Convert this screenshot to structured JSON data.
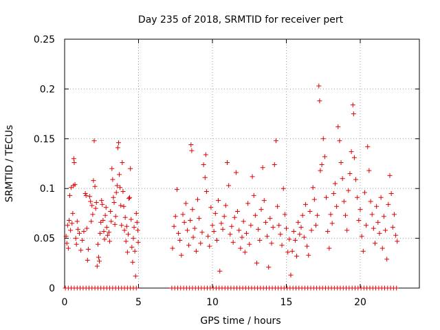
{
  "chart_data": {
    "type": "scatter",
    "title": "Day 235 of 2018, SRMTID for receiver pert",
    "xlabel": "GPS time / hours",
    "ylabel": "SRMTID / TECUs",
    "xlim": [
      0,
      24
    ],
    "ylim": [
      0,
      0.25
    ],
    "grid": true,
    "xticks": [
      0,
      5,
      10,
      15,
      20
    ],
    "xtick_labels": [
      "0",
      "5",
      "10",
      "15",
      "20"
    ],
    "yticks": [
      0,
      0.05,
      0.1,
      0.15,
      0.2,
      0.25
    ],
    "ytick_labels": [
      "0",
      "0.05",
      "0.1",
      "0.15",
      "0.2",
      "0.25"
    ],
    "marker": "+",
    "series": [
      {
        "name": "SRMTID",
        "color": "#e00000",
        "points": [
          [
            0.1,
            0.052
          ],
          [
            0.15,
            0.045
          ],
          [
            0.2,
            0.063
          ],
          [
            0.25,
            0.04
          ],
          [
            0.3,
            0.068
          ],
          [
            0.35,
            0.093
          ],
          [
            0.4,
            0.058
          ],
          [
            0.45,
            0.101
          ],
          [
            0.5,
            0.065
          ],
          [
            0.55,
            0.075
          ],
          [
            0.6,
            0.103
          ],
          [
            0.62,
            0.13
          ],
          [
            0.65,
            0.126
          ],
          [
            0.7,
            0.104
          ],
          [
            0.75,
            0.05
          ],
          [
            0.8,
            0.044
          ],
          [
            0.85,
            0.067
          ],
          [
            0.9,
            0.059
          ],
          [
            1.0,
            0.055
          ],
          [
            1.1,
            0.038
          ],
          [
            1.2,
            0.048
          ],
          [
            1.3,
            0.057
          ],
          [
            1.4,
            0.095
          ],
          [
            1.45,
            0.093
          ],
          [
            1.5,
            0.06
          ],
          [
            1.55,
            0.028
          ],
          [
            1.6,
            0.039
          ],
          [
            1.7,
            0.092
          ],
          [
            1.75,
            0.087
          ],
          [
            1.8,
            0.067
          ],
          [
            1.85,
            0.083
          ],
          [
            1.9,
            0.074
          ],
          [
            1.95,
            0.108
          ],
          [
            2.0,
            0.148
          ],
          [
            2.05,
            0.102
          ],
          [
            2.1,
            0.08
          ],
          [
            2.15,
            0.086
          ],
          [
            2.2,
            0.022
          ],
          [
            2.25,
            0.044
          ],
          [
            2.3,
            0.031
          ],
          [
            2.35,
            0.027
          ],
          [
            2.4,
            0.055
          ],
          [
            2.45,
            0.066
          ],
          [
            2.5,
            0.088
          ],
          [
            2.55,
            0.084
          ],
          [
            2.6,
            0.068
          ],
          [
            2.65,
            0.057
          ],
          [
            2.7,
            0.049
          ],
          [
            2.75,
            0.073
          ],
          [
            2.8,
            0.081
          ],
          [
            2.85,
            0.061
          ],
          [
            2.9,
            0.053
          ],
          [
            3.0,
            0.056
          ],
          [
            3.05,
            0.047
          ],
          [
            3.1,
            0.077
          ],
          [
            3.15,
            0.067
          ],
          [
            3.2,
            0.12
          ],
          [
            3.25,
            0.109
          ],
          [
            3.3,
            0.091
          ],
          [
            3.35,
            0.086
          ],
          [
            3.4,
            0.064
          ],
          [
            3.45,
            0.072
          ],
          [
            3.5,
            0.096
          ],
          [
            3.55,
            0.103
          ],
          [
            3.6,
            0.141
          ],
          [
            3.65,
            0.146
          ],
          [
            3.7,
            0.114
          ],
          [
            3.75,
            0.101
          ],
          [
            3.8,
            0.083
          ],
          [
            3.85,
            0.063
          ],
          [
            3.9,
            0.126
          ],
          [
            3.95,
            0.097
          ],
          [
            4.0,
            0.082
          ],
          [
            4.05,
            0.058
          ],
          [
            4.1,
            0.071
          ],
          [
            4.15,
            0.047
          ],
          [
            4.2,
            0.062
          ],
          [
            4.25,
            0.036
          ],
          [
            4.3,
            0.054
          ],
          [
            4.35,
            0.09
          ],
          [
            4.4,
            0.091
          ],
          [
            4.45,
            0.12
          ],
          [
            4.5,
            0.069
          ],
          [
            4.55,
            0.041
          ],
          [
            4.6,
            0.026
          ],
          [
            4.65,
            0.05
          ],
          [
            4.7,
            0.061
          ],
          [
            4.75,
            0.037
          ],
          [
            4.8,
            0.012
          ],
          [
            4.85,
            0.075
          ],
          [
            4.9,
            0.066
          ],
          [
            4.95,
            0.058
          ],
          [
            4.98,
            0.046
          ],
          [
            7.3,
            0.04
          ],
          [
            7.4,
            0.062
          ],
          [
            7.5,
            0.072
          ],
          [
            7.6,
            0.099
          ],
          [
            7.7,
            0.055
          ],
          [
            7.8,
            0.048
          ],
          [
            7.9,
            0.033
          ],
          [
            8.0,
            0.074
          ],
          [
            8.1,
            0.066
          ],
          [
            8.2,
            0.085
          ],
          [
            8.3,
            0.058
          ],
          [
            8.4,
            0.043
          ],
          [
            8.5,
            0.068
          ],
          [
            8.55,
            0.144
          ],
          [
            8.6,
            0.138
          ],
          [
            8.65,
            0.079
          ],
          [
            8.7,
            0.051
          ],
          [
            8.8,
            0.06
          ],
          [
            8.9,
            0.037
          ],
          [
            9.0,
            0.089
          ],
          [
            9.1,
            0.07
          ],
          [
            9.2,
            0.045
          ],
          [
            9.3,
            0.056
          ],
          [
            9.4,
            0.124
          ],
          [
            9.5,
            0.111
          ],
          [
            9.55,
            0.134
          ],
          [
            9.6,
            0.097
          ],
          [
            9.7,
            0.052
          ],
          [
            9.8,
            0.042
          ],
          [
            9.9,
            0.081
          ],
          [
            10.0,
            0.063
          ],
          [
            10.1,
            0.057
          ],
          [
            10.2,
            0.075
          ],
          [
            10.3,
            0.048
          ],
          [
            10.4,
            0.088
          ],
          [
            10.5,
            0.017
          ],
          [
            10.6,
            0.065
          ],
          [
            10.7,
            0.059
          ],
          [
            10.8,
            0.072
          ],
          [
            10.9,
            0.083
          ],
          [
            11.0,
            0.126
          ],
          [
            11.1,
            0.103
          ],
          [
            11.2,
            0.054
          ],
          [
            11.3,
            0.062
          ],
          [
            11.4,
            0.046
          ],
          [
            11.5,
            0.071
          ],
          [
            11.6,
            0.116
          ],
          [
            11.7,
            0.077
          ],
          [
            11.8,
            0.058
          ],
          [
            11.9,
            0.04
          ],
          [
            12.0,
            0.051
          ],
          [
            12.1,
            0.067
          ],
          [
            12.2,
            0.036
          ],
          [
            12.3,
            0.055
          ],
          [
            12.4,
            0.085
          ],
          [
            12.5,
            0.044
          ],
          [
            12.6,
            0.063
          ],
          [
            12.7,
            0.112
          ],
          [
            12.8,
            0.093
          ],
          [
            12.9,
            0.073
          ],
          [
            13.0,
            0.025
          ],
          [
            13.1,
            0.059
          ],
          [
            13.2,
            0.048
          ],
          [
            13.3,
            0.079
          ],
          [
            13.4,
            0.121
          ],
          [
            13.5,
            0.088
          ],
          [
            13.6,
            0.066
          ],
          [
            13.7,
            0.052
          ],
          [
            13.8,
            0.021
          ],
          [
            13.9,
            0.07
          ],
          [
            14.0,
            0.045
          ],
          [
            14.1,
            0.061
          ],
          [
            14.2,
            0.124
          ],
          [
            14.3,
            0.148
          ],
          [
            14.4,
            0.082
          ],
          [
            14.5,
            0.063
          ],
          [
            14.6,
            0.054
          ],
          [
            14.7,
            0.043
          ],
          [
            14.8,
            0.1
          ],
          [
            14.9,
            0.074
          ],
          [
            15.0,
            0.06
          ],
          [
            15.1,
            0.036
          ],
          [
            15.2,
            0.049
          ],
          [
            15.3,
            0.013
          ],
          [
            15.4,
            0.037
          ],
          [
            15.5,
            0.057
          ],
          [
            15.6,
            0.048
          ],
          [
            15.7,
            0.032
          ],
          [
            15.8,
            0.066
          ],
          [
            15.9,
            0.054
          ],
          [
            16.0,
            0.061
          ],
          [
            16.1,
            0.073
          ],
          [
            16.2,
            0.051
          ],
          [
            16.3,
            0.084
          ],
          [
            16.4,
            0.042
          ],
          [
            16.5,
            0.033
          ],
          [
            16.6,
            0.077
          ],
          [
            16.7,
            0.058
          ],
          [
            16.8,
            0.101
          ],
          [
            16.9,
            0.089
          ],
          [
            17.0,
            0.063
          ],
          [
            17.1,
            0.073
          ],
          [
            17.2,
            0.203
          ],
          [
            17.25,
            0.188
          ],
          [
            17.3,
            0.118
          ],
          [
            17.4,
            0.124
          ],
          [
            17.5,
            0.15
          ],
          [
            17.6,
            0.132
          ],
          [
            17.7,
            0.091
          ],
          [
            17.8,
            0.057
          ],
          [
            17.9,
            0.04
          ],
          [
            18.0,
            0.074
          ],
          [
            18.1,
            0.065
          ],
          [
            18.2,
            0.095
          ],
          [
            18.3,
            0.105
          ],
          [
            18.4,
            0.082
          ],
          [
            18.5,
            0.162
          ],
          [
            18.6,
            0.148
          ],
          [
            18.7,
            0.126
          ],
          [
            18.8,
            0.11
          ],
          [
            18.9,
            0.087
          ],
          [
            19.0,
            0.073
          ],
          [
            19.1,
            0.058
          ],
          [
            19.2,
            0.098
          ],
          [
            19.3,
            0.115
          ],
          [
            19.4,
            0.137
          ],
          [
            19.5,
            0.184
          ],
          [
            19.55,
            0.175
          ],
          [
            19.6,
            0.131
          ],
          [
            19.7,
            0.109
          ],
          [
            19.8,
            0.091
          ],
          [
            19.9,
            0.068
          ],
          [
            20.0,
            0.079
          ],
          [
            20.1,
            0.052
          ],
          [
            20.2,
            0.037
          ],
          [
            20.3,
            0.096
          ],
          [
            20.4,
            0.063
          ],
          [
            20.5,
            0.142
          ],
          [
            20.6,
            0.118
          ],
          [
            20.7,
            0.087
          ],
          [
            20.8,
            0.074
          ],
          [
            20.9,
            0.06
          ],
          [
            21.0,
            0.045
          ],
          [
            21.1,
            0.082
          ],
          [
            21.2,
            0.066
          ],
          [
            21.3,
            0.055
          ],
          [
            21.4,
            0.091
          ],
          [
            21.5,
            0.04
          ],
          [
            21.6,
            0.072
          ],
          [
            21.7,
            0.058
          ],
          [
            21.8,
            0.029
          ],
          [
            21.9,
            0.084
          ],
          [
            22.0,
            0.113
          ],
          [
            22.1,
            0.095
          ],
          [
            22.2,
            0.061
          ],
          [
            22.3,
            0.074
          ],
          [
            22.4,
            0.053
          ],
          [
            22.5,
            0.047
          ]
        ],
        "zero_points": [
          0.05,
          0.25,
          0.45,
          0.65,
          0.85,
          1.05,
          1.25,
          1.45,
          1.65,
          1.85,
          2.05,
          2.25,
          2.45,
          2.65,
          2.85,
          3.05,
          3.25,
          3.45,
          3.65,
          3.85,
          4.05,
          4.25,
          4.45,
          4.65,
          4.85,
          7.25,
          7.45,
          7.65,
          7.85,
          8.05,
          8.25,
          8.45,
          8.65,
          8.85,
          9.05,
          9.25,
          9.45,
          9.65,
          9.85,
          10.05,
          10.25,
          10.45,
          10.65,
          10.85,
          11.05,
          11.25,
          11.45,
          11.65,
          11.85,
          12.05,
          12.25,
          12.45,
          12.65,
          12.85,
          13.05,
          13.25,
          13.45,
          13.65,
          13.85,
          14.05,
          14.25,
          14.45,
          14.65,
          14.85,
          15.05,
          15.25,
          15.45,
          15.65,
          15.85,
          16.05,
          16.25,
          16.45,
          16.65,
          16.85,
          17.05,
          17.25,
          17.45,
          17.65,
          17.85,
          18.05,
          18.25,
          18.45,
          18.65,
          18.85,
          19.05,
          19.25,
          19.45,
          19.65,
          19.85,
          20.05,
          20.25,
          20.45,
          20.65,
          20.85,
          21.05,
          21.25,
          21.45,
          21.65,
          21.85,
          22.05,
          22.25,
          22.45
        ]
      }
    ]
  }
}
